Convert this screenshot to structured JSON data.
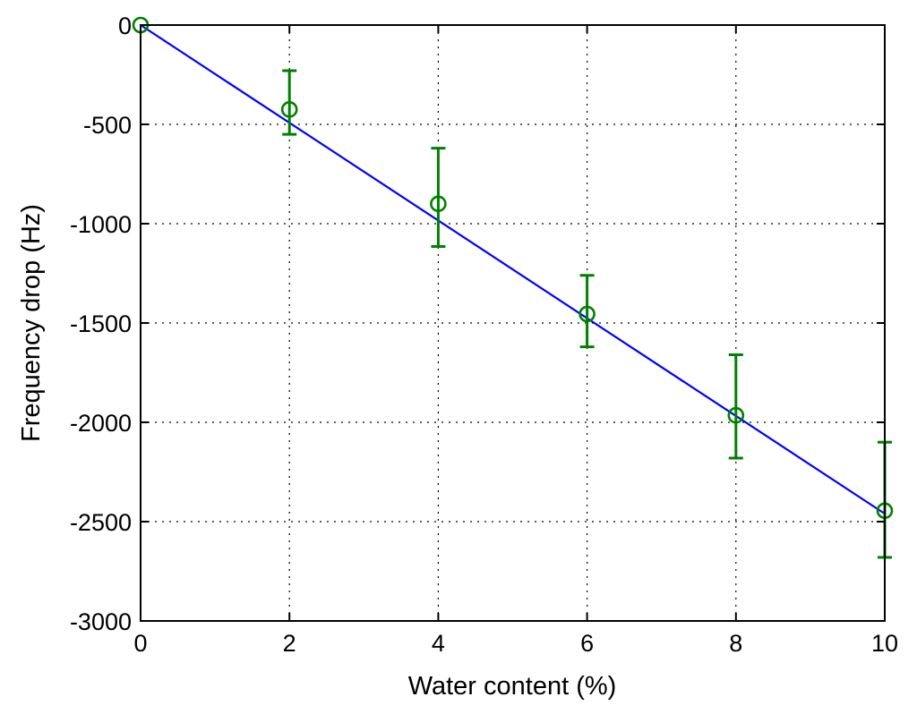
{
  "chart_data": {
    "type": "line",
    "xlabel": "Water content (%)",
    "ylabel": "Frequency drop (Hz)",
    "xlim": [
      0,
      10
    ],
    "ylim": [
      -3000,
      0
    ],
    "x_ticks": [
      0,
      2,
      4,
      6,
      8,
      10
    ],
    "y_ticks": [
      0,
      -500,
      -1000,
      -1500,
      -2000,
      -2500,
      -3000
    ],
    "x_tick_labels": [
      "0",
      "2",
      "4",
      "6",
      "8",
      "10"
    ],
    "y_tick_labels": [
      "0",
      "-500",
      "-1000",
      "-1500",
      "-2000",
      "-2500",
      "-3000"
    ],
    "grid": true,
    "series": [
      {
        "kind": "fit-line",
        "color": "#0000ff",
        "x": [
          0,
          10
        ],
        "y": [
          0,
          -2460
        ]
      },
      {
        "kind": "errorbar",
        "color": "#008000",
        "x": [
          0,
          2,
          4,
          6,
          8,
          10
        ],
        "y": [
          0,
          -425,
          -900,
          -1455,
          -1965,
          -2445
        ],
        "err_low": [
          0,
          125,
          215,
          165,
          215,
          235
        ],
        "err_high": [
          0,
          195,
          280,
          195,
          305,
          345
        ]
      }
    ]
  }
}
